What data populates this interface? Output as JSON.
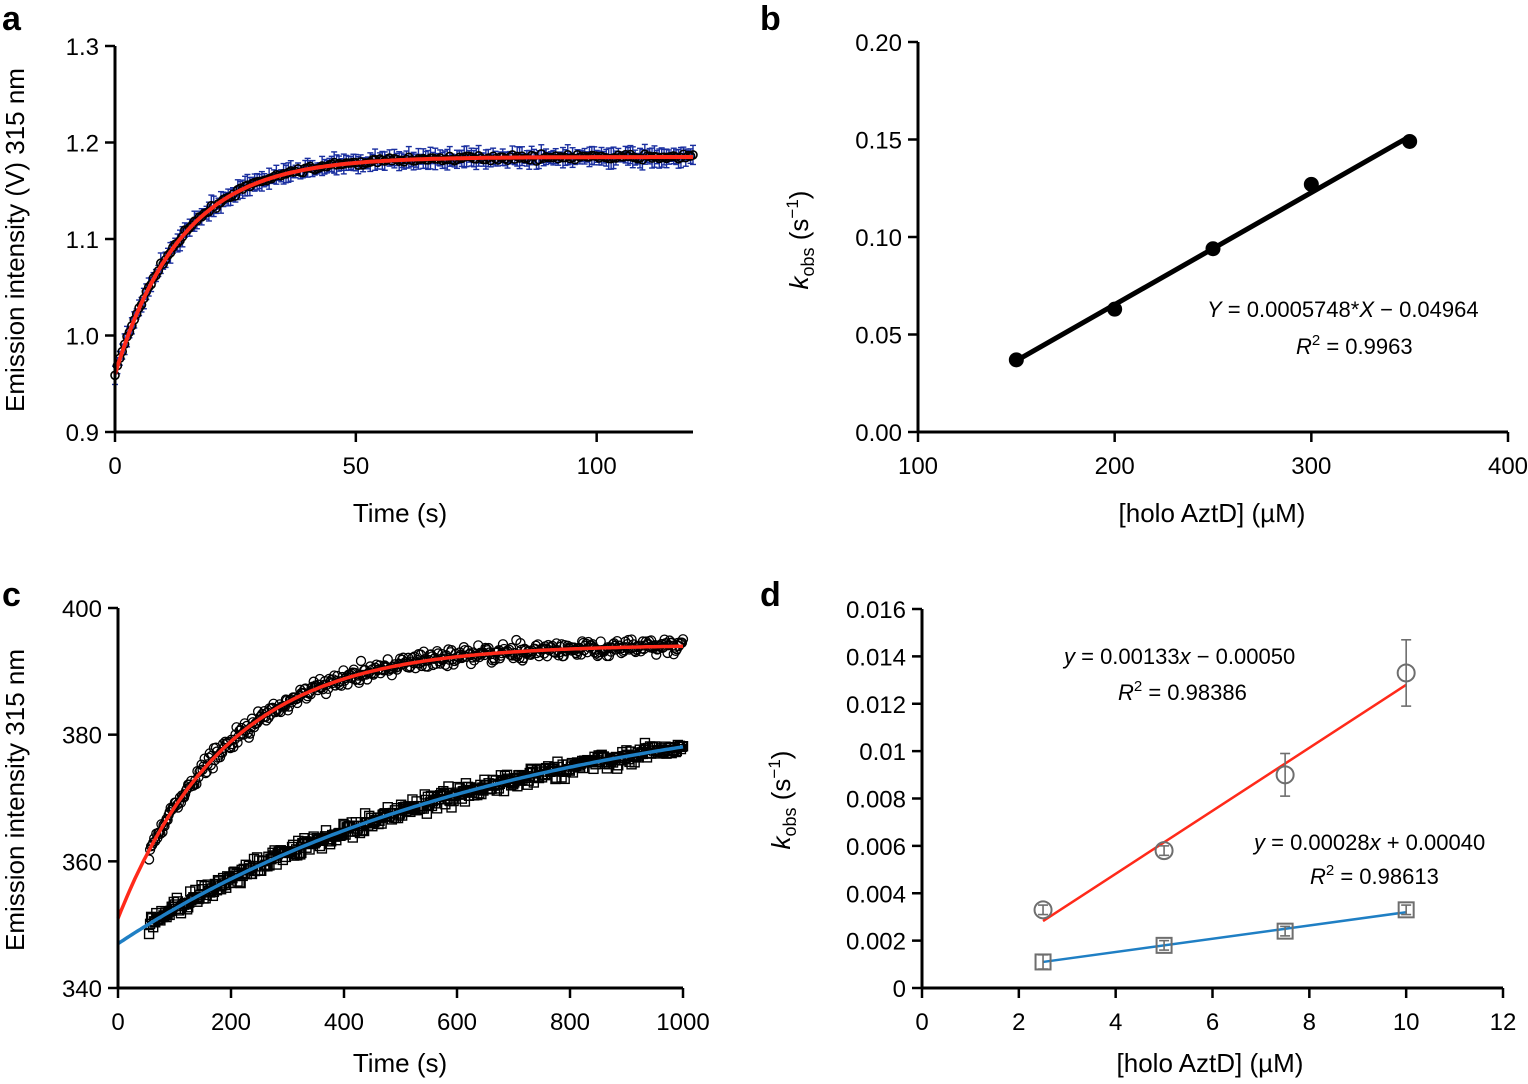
{
  "chart_data": [
    {
      "panel": "a",
      "type": "scatter",
      "xlabel": "Time (s)",
      "ylabel": "Emission intensity (V) 315 nm",
      "xlim": [
        0,
        120
      ],
      "ylim": [
        0.9,
        1.3
      ],
      "xticks": [
        0,
        50,
        100
      ],
      "yticks": [
        0.9,
        1.0,
        1.1,
        1.2,
        1.3
      ],
      "ytick_labels": [
        "0.9",
        "1.0",
        "1.1",
        "1.2",
        "1.3"
      ],
      "fit": {
        "model": "single-exponential",
        "y0": 0.96,
        "plateau": 1.185,
        "k": 0.072,
        "color": "#ff2a1a"
      },
      "series": [
        {
          "name": "data",
          "marker": "open-circle",
          "color": "#000000",
          "errorbar_color": "#1a2fa0",
          "x_range": [
            0,
            120
          ],
          "points": 241,
          "y_error": 0.008
        }
      ]
    },
    {
      "panel": "b",
      "type": "scatter",
      "xlabel": "[holo AztD] (µM)",
      "ylabel": "k_obs (s−1)",
      "ylabel_main": "k",
      "ylabel_sub": "obs",
      "ylabel_rest_open": " (s",
      "ylabel_sup": "−1",
      "ylabel_close": ")",
      "xlim": [
        100,
        400
      ],
      "ylim": [
        0,
        0.2
      ],
      "xticks": [
        100,
        200,
        300,
        400
      ],
      "yticks": [
        0,
        0.05,
        0.1,
        0.15,
        0.2
      ],
      "ytick_labels": [
        "0.00",
        "0.05",
        "0.10",
        "0.15",
        "0.20"
      ],
      "series": [
        {
          "name": "kobs",
          "marker": "filled-circle",
          "color": "#000000",
          "x": [
            150,
            200,
            250,
            300,
            350
          ],
          "y": [
            0.037,
            0.063,
            0.094,
            0.127,
            0.149
          ]
        }
      ],
      "fit": {
        "slope": 0.0005748,
        "intercept": -0.04964,
        "x_range": [
          150,
          350
        ],
        "color": "#000000"
      },
      "annotations": {
        "equation_lhs": "Y",
        "equation_mid": " = 0.0005748*",
        "equation_x": "X",
        "equation_rhs": " − 0.04964",
        "r2_label": "R",
        "r2_sup": "2",
        "r2_value": " = 0.9963"
      }
    },
    {
      "panel": "c",
      "type": "scatter",
      "xlabel": "Time (s)",
      "ylabel": "Emission intensity 315 nm",
      "xlim": [
        0,
        1000
      ],
      "ylim": [
        340,
        400
      ],
      "xticks": [
        0,
        200,
        400,
        600,
        800,
        1000
      ],
      "yticks": [
        340,
        360,
        380,
        400
      ],
      "series": [
        {
          "name": "circles",
          "marker": "open-circle",
          "color": "#000000",
          "x_range": [
            55,
            1000
          ],
          "fit": {
            "model": "single-exponential",
            "y0": 351,
            "plateau": 394.2,
            "k": 0.0052,
            "color": "#ff2a1a"
          }
        },
        {
          "name": "squares",
          "marker": "open-square",
          "color": "#000000",
          "x_range": [
            55,
            1000
          ],
          "fit": {
            "model": "single-exponential",
            "y0": 347,
            "plateau": 387.6,
            "k": 0.00145,
            "color": "#1f7fc4"
          }
        }
      ]
    },
    {
      "panel": "d",
      "type": "scatter",
      "xlabel": "[holo AztD] (µM)",
      "ylabel": "k_obs (s−1)",
      "ylabel_main": "k",
      "ylabel_sub": "obs",
      "ylabel_rest_open": " (s",
      "ylabel_sup": "−1",
      "ylabel_close": ")",
      "xlim": [
        0,
        12
      ],
      "ylim": [
        0,
        0.016
      ],
      "xticks": [
        0,
        2,
        4,
        6,
        8,
        10,
        12
      ],
      "yticks": [
        0,
        0.002,
        0.004,
        0.006,
        0.008,
        0.01,
        0.012,
        0.014,
        0.016
      ],
      "ytick_labels": [
        "0",
        "0.002",
        "0.004",
        "0.006",
        "0.008",
        "0.01",
        "0.012",
        "0.014",
        "0.016"
      ],
      "series": [
        {
          "name": "circles",
          "marker": "open-circle",
          "color": "#6e6e6e",
          "x": [
            2.5,
            5,
            7.5,
            10
          ],
          "y": [
            0.0033,
            0.0058,
            0.009,
            0.0133
          ],
          "error": [
            0.0002,
            0.0002,
            0.0009,
            0.0014
          ],
          "fit": {
            "slope": 0.00133,
            "intercept": -0.0005,
            "x_range": [
              2.5,
              10
            ],
            "color": "#ff2a1a"
          }
        },
        {
          "name": "squares",
          "marker": "open-square",
          "color": "#6e6e6e",
          "x": [
            2.5,
            5,
            7.5,
            10
          ],
          "y": [
            0.0011,
            0.0018,
            0.0024,
            0.0033
          ],
          "error": [
            0.0003,
            0.0002,
            0.0002,
            0.0002
          ],
          "fit": {
            "slope": 0.00028,
            "intercept": 0.0004,
            "x_range": [
              2.5,
              10
            ],
            "color": "#1f7fc4"
          }
        }
      ],
      "annotations": {
        "eq1_lhs": "y",
        "eq1_mid": " = 0.00133",
        "eq1_x": "x",
        "eq1_rhs": " − 0.00050",
        "r2_1_label": "R",
        "r2_1_sup": "2",
        "r2_1_value": " = 0.98386",
        "eq2_lhs": "y",
        "eq2_mid": " = 0.00028",
        "eq2_x": "x",
        "eq2_rhs": " + 0.00040",
        "r2_2_label": "R",
        "r2_2_sup": "2",
        "r2_2_value": " = 0.98613"
      }
    }
  ],
  "panel_labels": {
    "a": "a",
    "b": "b",
    "c": "c",
    "d": "d"
  }
}
